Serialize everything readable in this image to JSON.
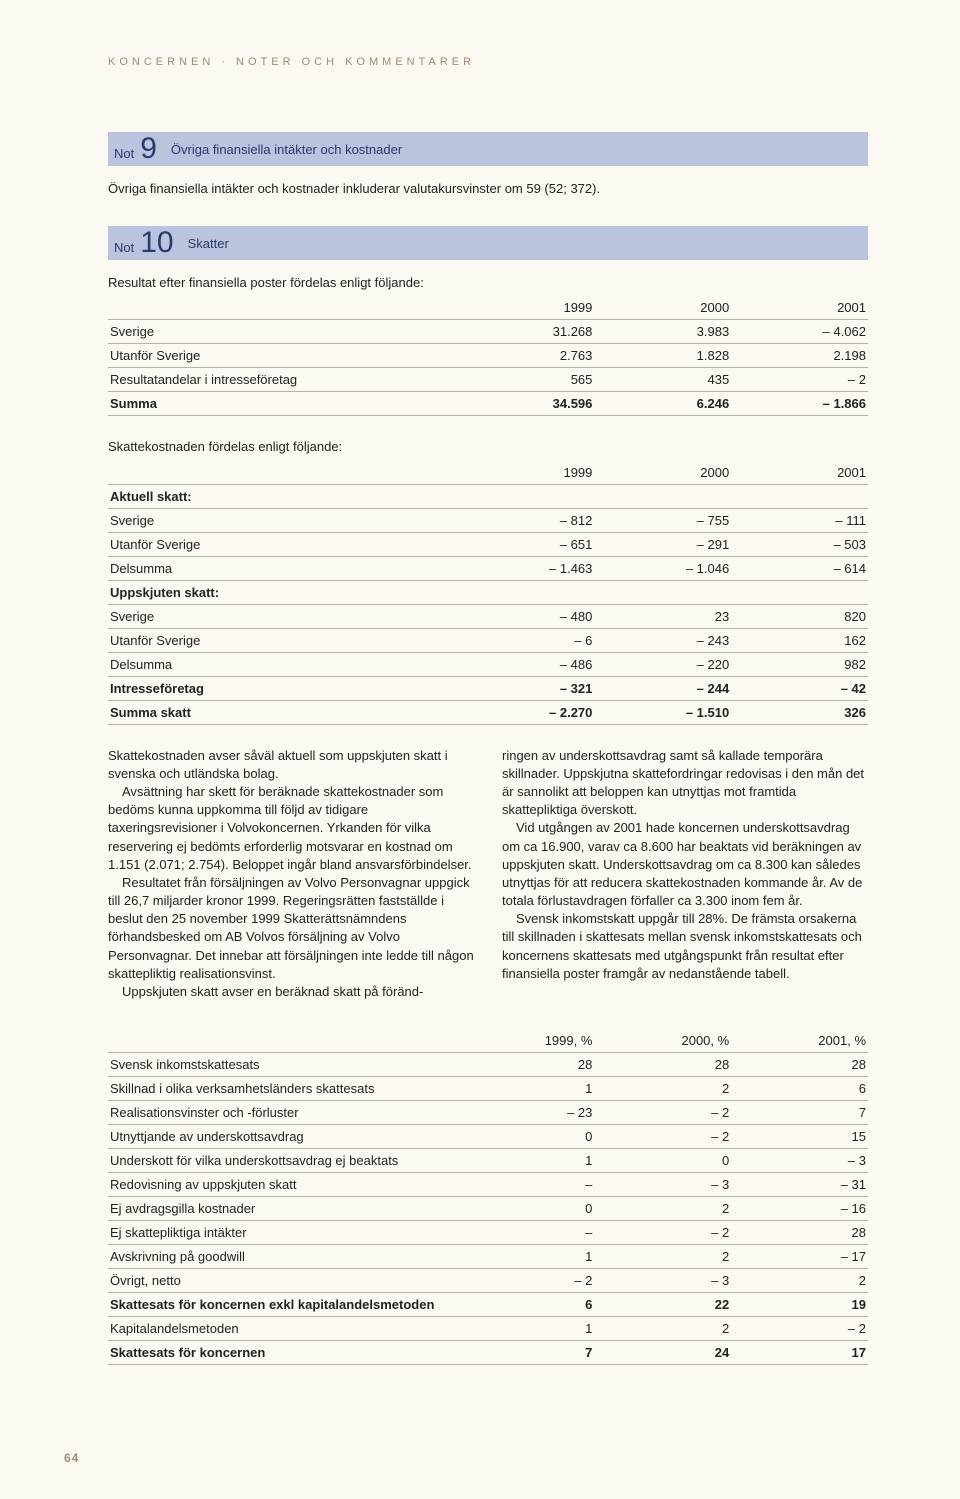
{
  "kicker": "KONCERNEN · NOTER OCH KOMMENTARER",
  "page_number": "64",
  "note9": {
    "not": "Not",
    "num": "9",
    "title": "Övriga finansiella intäkter och kostnader",
    "intro": "Övriga finansiella intäkter och kostnader inkluderar valutakursvinster om 59 (52; 372)."
  },
  "note10": {
    "not": "Not",
    "num": "10",
    "title": "Skatter",
    "intro1": "Resultat efter finansiella poster fördelas enligt följande:",
    "intro2": "Skattekostnaden fördelas enligt följande:"
  },
  "table1": {
    "headers": [
      "",
      "1999",
      "2000",
      "2001"
    ],
    "rows": [
      {
        "label": "Sverige",
        "c": [
          "31.268",
          "3.983",
          "– 4.062"
        ],
        "bold": false
      },
      {
        "label": "Utanför Sverige",
        "c": [
          "2.763",
          "1.828",
          "2.198"
        ],
        "bold": false
      },
      {
        "label": "Resultatandelar i intresseföretag",
        "c": [
          "565",
          "435",
          "– 2"
        ],
        "bold": false
      },
      {
        "label": "Summa",
        "c": [
          "34.596",
          "6.246",
          "– 1.866"
        ],
        "bold": true
      }
    ]
  },
  "table2": {
    "headers": [
      "",
      "1999",
      "2000",
      "2001"
    ],
    "rows": [
      {
        "label": "Aktuell skatt:",
        "c": [
          "",
          "",
          ""
        ],
        "section": true
      },
      {
        "label": "Sverige",
        "c": [
          "– 812",
          "– 755",
          "– 111"
        ]
      },
      {
        "label": "Utanför Sverige",
        "c": [
          "– 651",
          "– 291",
          "– 503"
        ]
      },
      {
        "label": "Delsumma",
        "c": [
          "– 1.463",
          "– 1.046",
          "– 614"
        ]
      },
      {
        "label": "Uppskjuten skatt:",
        "c": [
          "",
          "",
          ""
        ],
        "section": true
      },
      {
        "label": "Sverige",
        "c": [
          "– 480",
          "23",
          "820"
        ]
      },
      {
        "label": "Utanför Sverige",
        "c": [
          "– 6",
          "– 243",
          "162"
        ]
      },
      {
        "label": "Delsumma",
        "c": [
          "– 486",
          "– 220",
          "982"
        ]
      },
      {
        "label": "Intresseföretag",
        "c": [
          "– 321",
          "– 244",
          "– 42"
        ],
        "bold": true
      },
      {
        "label": "Summa skatt",
        "c": [
          "– 2.270",
          "– 1.510",
          "326"
        ],
        "bold": true
      }
    ]
  },
  "body": {
    "left": {
      "p1": "Skattekostnaden avser såväl aktuell som uppskjuten skatt i svenska och utländska bolag.",
      "p2": "Avsättning har skett för beräknade skattekostnader som bedöms kunna uppkomma till följd av tidigare taxeringsrevisioner i Volvokoncernen. Yrkanden för vilka reservering ej bedömts erforderlig motsvarar en kostnad om 1.151 (2.071; 2.754). Beloppet ingår bland ansvarsförbindelser.",
      "p3": "Resultatet från försäljningen av Volvo Personvagnar uppgick till 26,7 miljarder kronor 1999. Regeringsrätten fastställde i beslut den 25 november 1999 Skatterättsnämndens förhandsbesked om AB Volvos försäljning av Volvo Personvagnar. Det innebar att försäljningen inte ledde till någon skattepliktig realisationsvinst.",
      "p4": "Uppskjuten skatt avser en beräknad skatt på föränd-"
    },
    "right": {
      "p1": "ringen av underskottsavdrag samt så kallade temporära skillnader. Uppskjutna skattefordringar redovisas i den mån det är sannolikt att beloppen kan utnyttjas mot framtida skattepliktiga överskott.",
      "p2": "Vid utgången av 2001 hade koncernen underskottsavdrag om ca 16.900, varav ca 8.600 har beaktats vid beräkningen av uppskjuten skatt. Underskottsavdrag om ca 8.300 kan således utnyttjas för att reducera skattekostnaden kommande år. Av de totala förlustavdragen förfaller ca 3.300 inom fem år.",
      "p3": "Svensk inkomstskatt uppgår till 28%. De främsta orsakerna till skillnaden i skattesats mellan svensk inkomstskattesats och koncernens skattesats med utgångspunkt från resultat efter finansiella poster framgår av nedanstående tabell."
    }
  },
  "table3": {
    "headers": [
      "",
      "1999, %",
      "2000, %",
      "2001, %"
    ],
    "rows": [
      {
        "label": "Svensk inkomstskattesats",
        "c": [
          "28",
          "28",
          "28"
        ]
      },
      {
        "label": "Skillnad i olika verksamhetsländers skattesats",
        "c": [
          "1",
          "2",
          "6"
        ]
      },
      {
        "label": "Realisationsvinster och -förluster",
        "c": [
          "– 23",
          "– 2",
          "7"
        ]
      },
      {
        "label": "Utnyttjande av underskottsavdrag",
        "c": [
          "0",
          "– 2",
          "15"
        ]
      },
      {
        "label": "Underskott för vilka underskottsavdrag ej beaktats",
        "c": [
          "1",
          "0",
          "– 3"
        ]
      },
      {
        "label": "Redovisning av uppskjuten skatt",
        "c": [
          "–",
          "– 3",
          "– 31"
        ]
      },
      {
        "label": "Ej avdragsgilla kostnader",
        "c": [
          "0",
          "2",
          "– 16"
        ]
      },
      {
        "label": "Ej skattepliktiga intäkter",
        "c": [
          "–",
          "– 2",
          "28"
        ]
      },
      {
        "label": "Avskrivning på goodwill",
        "c": [
          "1",
          "2",
          "– 17"
        ]
      },
      {
        "label": "Övrigt, netto",
        "c": [
          "– 2",
          "– 3",
          "2"
        ]
      },
      {
        "label": "Skattesats för koncernen exkl kapitalandelsmetoden",
        "c": [
          "6",
          "22",
          "19"
        ],
        "bold": true
      },
      {
        "label": "Kapitalandelsmetoden",
        "c": [
          "1",
          "2",
          "– 2"
        ]
      },
      {
        "label": "Skattesats för koncernen",
        "c": [
          "7",
          "24",
          "17"
        ],
        "bold": true
      }
    ]
  }
}
